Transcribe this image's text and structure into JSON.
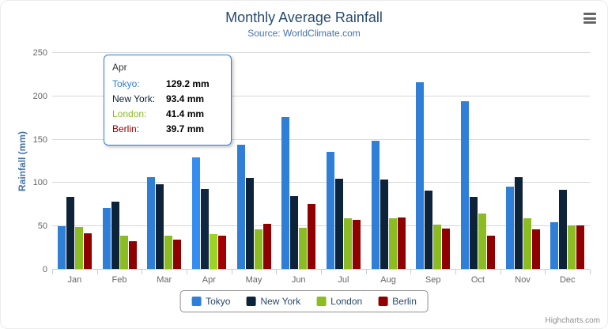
{
  "chart_data": {
    "type": "bar",
    "title": "Monthly Average Rainfall",
    "subtitle": "Source: WorldClimate.com",
    "categories": [
      "Jan",
      "Feb",
      "Mar",
      "Apr",
      "May",
      "Jun",
      "Jul",
      "Aug",
      "Sep",
      "Oct",
      "Nov",
      "Dec"
    ],
    "series": [
      {
        "name": "Tokyo",
        "color": "#2f7ed8",
        "values": [
          49.9,
          71.5,
          106.4,
          129.2,
          144.0,
          176.0,
          135.6,
          148.5,
          216.4,
          194.1,
          95.6,
          54.4
        ]
      },
      {
        "name": "New York",
        "color": "#0d233a",
        "values": [
          83.6,
          78.8,
          98.5,
          93.4,
          106.0,
          84.5,
          105.0,
          104.3,
          91.2,
          83.5,
          106.6,
          92.3
        ]
      },
      {
        "name": "London",
        "color": "#8bbc21",
        "values": [
          48.9,
          38.8,
          39.3,
          41.4,
          47.0,
          48.3,
          59.0,
          59.6,
          52.4,
          65.2,
          59.3,
          51.2
        ]
      },
      {
        "name": "Berlin",
        "color": "#910000",
        "values": [
          42.4,
          33.2,
          34.5,
          39.7,
          52.6,
          75.5,
          57.4,
          60.4,
          47.6,
          39.1,
          46.8,
          51.1
        ]
      }
    ],
    "xlabel": "",
    "ylabel": "Rainfall (mm)",
    "ylim": [
      0,
      250
    ],
    "yticks": [
      0,
      50,
      100,
      150,
      200,
      250
    ],
    "grid": true,
    "legend_position": "bottom"
  },
  "tooltip": {
    "header": "Apr",
    "border_color": "#2f7ed8",
    "rows": [
      {
        "name": "Tokyo",
        "value": "129.2 mm",
        "color": "#2f7ed8"
      },
      {
        "name": "New York",
        "value": "93.4 mm",
        "color": "#0d233a"
      },
      {
        "name": "London",
        "value": "41.4 mm",
        "color": "#8bbc21"
      },
      {
        "name": "Berlin",
        "value": "39.7 mm",
        "color": "#910000"
      }
    ]
  },
  "toolbar": {
    "export_menu_icon": "hamburger-menu-icon"
  },
  "credits": {
    "label": "Highcharts.com"
  }
}
